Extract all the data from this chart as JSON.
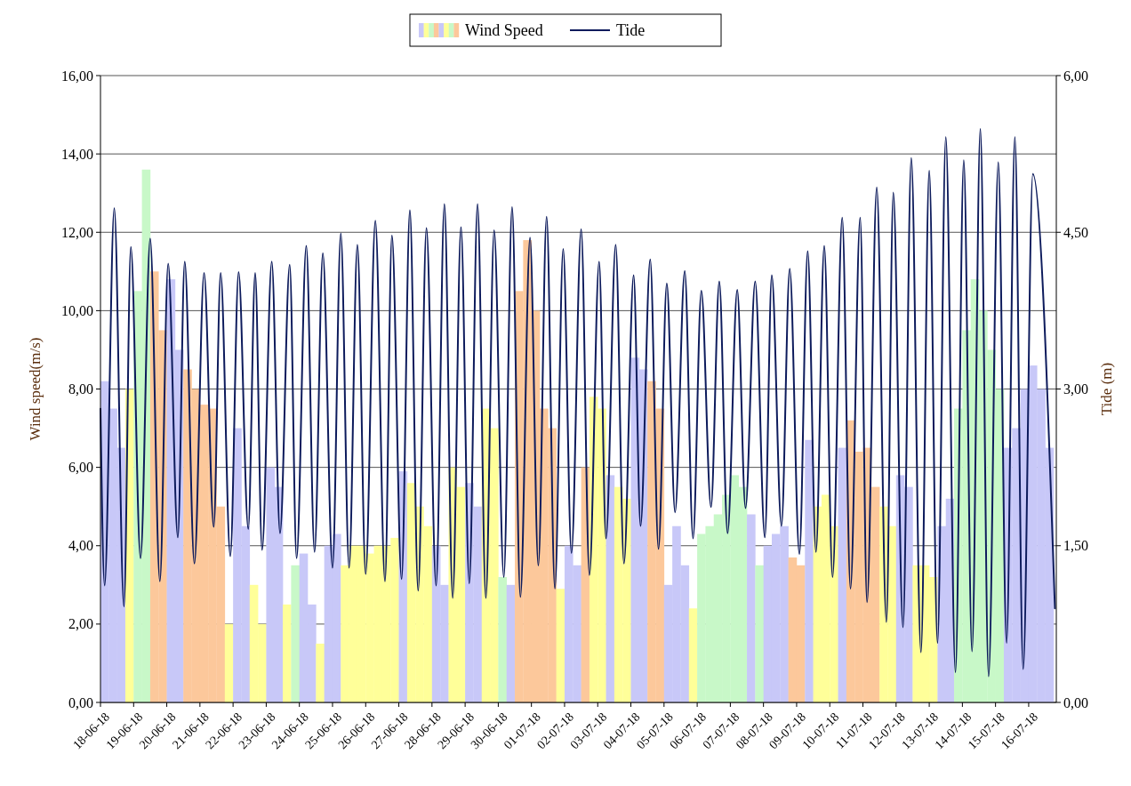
{
  "chart_data": {
    "type": "bar",
    "xlim": [
      "--06-18",
      "--07-16T20:00"
    ],
    "xticks": [
      {
        "value": "--06-18",
        "label": "18-06-18"
      },
      {
        "value": "--06-19",
        "label": "19-06-18"
      },
      {
        "value": "--06-20",
        "label": "20-06-18"
      },
      {
        "value": "--06-21",
        "label": "21-06-18"
      },
      {
        "value": "--06-22",
        "label": "22-06-18"
      },
      {
        "value": "--06-23",
        "label": "23-06-18"
      },
      {
        "value": "--06-24",
        "label": "24-06-18"
      },
      {
        "value": "--06-25",
        "label": "25-06-18"
      },
      {
        "value": "--06-26",
        "label": "26-06-18"
      },
      {
        "value": "--06-27",
        "label": "27-06-18"
      },
      {
        "value": "--06-28",
        "label": "28-06-18"
      },
      {
        "value": "--06-29",
        "label": "29-06-18"
      },
      {
        "value": "--06-30",
        "label": "30-06-18"
      },
      {
        "value": "--07-01",
        "label": "01-07-18"
      },
      {
        "value": "--07-02",
        "label": "02-07-18"
      },
      {
        "value": "--07-03",
        "label": "03-07-18"
      },
      {
        "value": "--07-04",
        "label": "04-07-18"
      },
      {
        "value": "--07-05",
        "label": "05-07-18"
      },
      {
        "value": "--07-06",
        "label": "06-07-18"
      },
      {
        "value": "--07-07",
        "label": "07-07-18"
      },
      {
        "value": "--07-08",
        "label": "08-07-18"
      },
      {
        "value": "--07-09",
        "label": "09-07-18"
      },
      {
        "value": "--07-10",
        "label": "10-07-18"
      },
      {
        "value": "--07-11",
        "label": "11-07-18"
      },
      {
        "value": "--07-12",
        "label": "12-07-18"
      },
      {
        "value": "--07-13",
        "label": "13-07-18"
      },
      {
        "value": "--07-14",
        "label": "14-07-18"
      },
      {
        "value": "--07-15",
        "label": "15-07-18"
      },
      {
        "value": "--07-16",
        "label": "16-07-18"
      }
    ],
    "ylim": [
      0,
      16
    ],
    "yticks": [
      {
        "value": 0,
        "label": "0,00"
      },
      {
        "value": 2,
        "label": "2,00"
      },
      {
        "value": 4,
        "label": "4,00"
      },
      {
        "value": 6,
        "label": "6,00"
      },
      {
        "value": 8,
        "label": "8,00"
      },
      {
        "value": 10,
        "label": "10,00"
      },
      {
        "value": 12,
        "label": "12,00"
      },
      {
        "value": 14,
        "label": "14,00"
      },
      {
        "value": 16,
        "label": "16,00"
      }
    ],
    "y2lim": [
      0,
      6
    ],
    "y2ticks": [
      {
        "value": 0,
        "label": "0,00"
      },
      {
        "value": 1.5,
        "label": "1,50"
      },
      {
        "value": 3,
        "label": "3,00"
      },
      {
        "value": 4.5,
        "label": "4,50"
      },
      {
        "value": 6,
        "label": "6,00"
      }
    ],
    "ylabel": "Wind speed(m/s)",
    "y2label": "Tide (m)",
    "grid": "y",
    "legend": "top",
    "series": [
      {
        "name": "Wind Speed",
        "x": [
          "--06-18T03:00",
          "--06-18T09:00",
          "--06-18T15:00",
          "--06-18T21:00",
          "--06-19T03:00",
          "--06-19T09:00",
          "--06-19T15:00",
          "--06-19T21:00",
          "--06-20T03:00",
          "--06-20T09:00",
          "--06-20T15:00",
          "--06-20T21:00",
          "--06-21T03:00",
          "--06-21T09:00",
          "--06-21T15:00",
          "--06-21T21:00",
          "--06-22T03:00",
          "--06-22T09:00",
          "--06-22T15:00",
          "--06-22T21:00",
          "--06-23T03:00",
          "--06-23T09:00",
          "--06-23T15:00",
          "--06-23T21:00",
          "--06-24T03:00",
          "--06-24T09:00",
          "--06-24T15:00",
          "--06-24T21:00",
          "--06-25T03:00",
          "--06-25T09:00",
          "--06-25T15:00",
          "--06-25T21:00",
          "--06-26T03:00",
          "--06-26T09:00",
          "--06-26T15:00",
          "--06-26T21:00",
          "--06-27T03:00",
          "--06-27T09:00",
          "--06-27T15:00",
          "--06-27T21:00",
          "--06-28T03:00",
          "--06-28T09:00",
          "--06-28T15:00",
          "--06-28T21:00",
          "--06-29T03:00",
          "--06-29T09:00",
          "--06-29T15:00",
          "--06-29T21:00",
          "--06-30T03:00",
          "--06-30T09:00",
          "--06-30T15:00",
          "--06-30T21:00",
          "--07-01T03:00",
          "--07-01T09:00",
          "--07-01T15:00",
          "--07-01T21:00",
          "--07-02T03:00",
          "--07-02T09:00",
          "--07-02T15:00",
          "--07-02T21:00",
          "--07-03T03:00",
          "--07-03T09:00",
          "--07-03T15:00",
          "--07-03T21:00",
          "--07-04T03:00",
          "--07-04T09:00",
          "--07-04T15:00",
          "--07-04T21:00",
          "--07-05T03:00",
          "--07-05T09:00",
          "--07-05T15:00",
          "--07-05T21:00",
          "--07-06T03:00",
          "--07-06T09:00",
          "--07-06T15:00",
          "--07-06T21:00",
          "--07-07T03:00",
          "--07-07T09:00",
          "--07-07T15:00",
          "--07-07T21:00",
          "--07-08T03:00",
          "--07-08T09:00",
          "--07-08T15:00",
          "--07-08T21:00",
          "--07-09T03:00",
          "--07-09T09:00",
          "--07-09T15:00",
          "--07-09T21:00",
          "--07-10T03:00",
          "--07-10T09:00",
          "--07-10T15:00",
          "--07-10T21:00",
          "--07-11T03:00",
          "--07-11T09:00",
          "--07-11T15:00",
          "--07-11T21:00",
          "--07-12T03:00",
          "--07-12T09:00",
          "--07-12T15:00",
          "--07-12T21:00",
          "--07-13T03:00",
          "--07-13T09:00",
          "--07-13T15:00",
          "--07-13T21:00",
          "--07-14T03:00",
          "--07-14T09:00",
          "--07-14T15:00",
          "--07-14T21:00",
          "--07-15T03:00",
          "--07-15T09:00",
          "--07-15T15:00",
          "--07-15T21:00",
          "--07-16T03:00",
          "--07-16T09:00",
          "--07-16T15:00"
        ],
        "values": [
          8.2,
          7.5,
          6.5,
          8.0,
          10.5,
          13.6,
          11.0,
          9.5,
          10.8,
          9.0,
          8.5,
          8.0,
          7.6,
          7.5,
          5.0,
          2.0,
          7.0,
          4.5,
          3.0,
          2.0,
          6.0,
          5.5,
          2.5,
          3.5,
          3.8,
          2.5,
          1.5,
          4.0,
          4.3,
          3.5,
          4.0,
          4.0,
          3.8,
          4.0,
          4.0,
          4.2,
          5.9,
          5.6,
          5.0,
          4.5,
          4.0,
          3.0,
          6.0,
          5.5,
          5.6,
          5.0,
          7.5,
          7.0,
          3.2,
          3.0,
          10.5,
          11.8,
          10.0,
          7.5,
          7.0,
          2.9,
          4.0,
          3.5,
          6.0,
          7.8,
          7.5,
          5.8,
          5.5,
          5.2,
          8.8,
          8.5,
          8.2,
          7.5,
          3.0,
          4.5,
          3.5,
          2.4,
          4.3,
          4.5,
          4.8,
          5.3,
          5.8,
          5.5,
          4.8,
          3.5,
          4.0,
          4.3,
          4.5,
          3.7,
          3.5,
          6.7,
          5.0,
          5.3,
          4.5,
          6.5,
          7.2,
          6.4,
          6.5,
          5.5,
          5.0,
          4.5,
          5.8,
          5.5,
          3.5,
          3.5,
          3.2,
          4.5,
          5.2,
          7.5,
          9.5,
          10.8,
          10.0,
          9.0,
          8.0,
          6.5,
          7.0,
          8.0,
          8.6,
          8.0,
          6.5
        ],
        "colors": [
          "#c8c8f8",
          "#c8c8f8",
          "#c8c8f8",
          "#ffff99",
          "#c8f8c8",
          "#c8f8c8",
          "#fcc89b",
          "#fcc89b",
          "#c8c8f8",
          "#c8c8f8",
          "#fcc89b",
          "#fcc89b",
          "#fcc89b",
          "#fcc89b",
          "#fcc89b",
          "#ffff99",
          "#c8c8f8",
          "#c8c8f8",
          "#ffff99",
          "#ffff99",
          "#c8c8f8",
          "#c8c8f8",
          "#ffff99",
          "#c8f8c8",
          "#c8c8f8",
          "#c8c8f8",
          "#ffff99",
          "#c8c8f8",
          "#c8c8f8",
          "#ffff99",
          "#ffff99",
          "#ffff99",
          "#ffff99",
          "#ffff99",
          "#ffff99",
          "#ffff99",
          "#c8c8f8",
          "#ffff99",
          "#ffff99",
          "#ffff99",
          "#c8c8f8",
          "#c8c8f8",
          "#ffff99",
          "#ffff99",
          "#c8c8f8",
          "#c8c8f8",
          "#ffff99",
          "#ffff99",
          "#c8f8c8",
          "#c8c8f8",
          "#fcc89b",
          "#fcc89b",
          "#fcc89b",
          "#fcc89b",
          "#fcc89b",
          "#ffff99",
          "#c8c8f8",
          "#c8c8f8",
          "#fcc89b",
          "#ffff99",
          "#ffff99",
          "#c8c8f8",
          "#ffff99",
          "#ffff99",
          "#c8c8f8",
          "#c8c8f8",
          "#fcc89b",
          "#fcc89b",
          "#c8c8f8",
          "#c8c8f8",
          "#c8c8f8",
          "#ffff99",
          "#c8f8c8",
          "#c8f8c8",
          "#c8f8c8",
          "#c8f8c8",
          "#c8f8c8",
          "#c8f8c8",
          "#c8c8f8",
          "#c8f8c8",
          "#c8c8f8",
          "#c8c8f8",
          "#c8c8f8",
          "#fcc89b",
          "#fcc89b",
          "#c8c8f8",
          "#ffff99",
          "#ffff99",
          "#ffff99",
          "#c8c8f8",
          "#fcc89b",
          "#fcc89b",
          "#fcc89b",
          "#fcc89b",
          "#ffff99",
          "#ffff99",
          "#c8c8f8",
          "#c8c8f8",
          "#ffff99",
          "#ffff99",
          "#ffff99",
          "#c8c8f8",
          "#c8c8f8",
          "#c8f8c8",
          "#c8f8c8",
          "#c8f8c8",
          "#c8f8c8",
          "#c8f8c8",
          "#c8f8c8",
          "#c8c8f8",
          "#c8c8f8",
          "#c8c8f8",
          "#c8c8f8",
          "#c8c8f8",
          "#c8c8f8"
        ]
      },
      {
        "name": "Tide",
        "type": "line",
        "axis": "y2",
        "color": "#0d1b5c",
        "x": [
          "--06-18T00:00",
          "--06-18T03:00",
          "--06-18T10:00",
          "--06-18T17:00",
          "--06-18T22:00",
          "--06-19T05:00",
          "--06-19T12:00",
          "--06-19T19:00",
          "--06-20T01:00",
          "--06-20T08:00",
          "--06-20T13:00",
          "--06-20T20:00",
          "--06-21T03:00",
          "--06-21T10:00",
          "--06-21T15:00",
          "--06-21T22:00",
          "--06-22T04:00",
          "--06-22T11:00",
          "--06-22T16:00",
          "--06-22T21:00",
          "--06-23T04:00",
          "--06-23T10:00",
          "--06-23T17:00",
          "--06-23T22:00",
          "--06-24T05:00",
          "--06-24T11:00",
          "--06-24T17:00",
          "--06-25T00:00",
          "--06-25T06:00",
          "--06-25T12:00",
          "--06-25T18:00",
          "--06-26T00:00",
          "--06-26T07:00",
          "--06-26T14:00",
          "--06-26T19:00",
          "--06-27T02:00",
          "--06-27T08:00",
          "--06-27T14:00",
          "--06-27T20:00",
          "--06-28T03:00",
          "--06-28T09:00",
          "--06-28T15:00",
          "--06-28T21:00",
          "--06-29T03:00",
          "--06-29T09:00",
          "--06-29T15:00",
          "--06-29T21:00",
          "--06-30T04:00",
          "--06-30T10:00",
          "--06-30T16:00",
          "--06-30T23:00",
          "--07-01T05:00",
          "--07-01T11:00",
          "--07-01T17:00",
          "--07-01T23:00",
          "--07-02T05:00",
          "--07-02T12:00",
          "--07-02T18:00",
          "--07-03T01:00",
          "--07-03T06:00",
          "--07-03T13:00",
          "--07-03T19:00",
          "--07-04T02:00",
          "--07-04T07:00",
          "--07-04T14:00",
          "--07-04T20:00",
          "--07-05T02:00",
          "--07-05T08:00",
          "--07-05T15:00",
          "--07-05T21:00",
          "--07-06T03:00",
          "--07-06T10:00",
          "--07-06T16:00",
          "--07-06T22:00",
          "--07-07T05:00",
          "--07-07T11:00",
          "--07-07T18:00",
          "--07-08T01:00",
          "--07-08T06:00",
          "--07-08T13:00",
          "--07-08T19:00",
          "--07-09T02:00",
          "--07-09T08:00",
          "--07-09T14:00",
          "--07-09T20:00",
          "--07-10T02:00",
          "--07-10T09:00",
          "--07-10T15:00",
          "--07-10T22:00",
          "--07-11T03:00",
          "--07-11T10:00",
          "--07-11T17:00",
          "--07-11T22:00",
          "--07-12T05:00",
          "--07-12T11:00",
          "--07-12T18:00",
          "--07-13T00:00",
          "--07-13T06:00",
          "--07-13T12:00",
          "--07-13T19:00",
          "--07-14T01:00",
          "--07-14T07:00",
          "--07-14T13:00",
          "--07-14T19:00",
          "--07-15T02:00",
          "--07-15T08:00",
          "--07-15T14:00",
          "--07-15T20:00",
          "--07-16T03:00",
          "--07-16T19:00"
        ],
        "values": [
          2.81,
          1.12,
          4.73,
          0.92,
          4.36,
          1.38,
          4.44,
          1.16,
          4.2,
          1.58,
          4.22,
          1.33,
          4.11,
          1.68,
          4.11,
          1.4,
          4.12,
          1.66,
          4.11,
          1.46,
          4.22,
          1.62,
          4.19,
          1.38,
          4.37,
          1.44,
          4.3,
          1.29,
          4.49,
          1.29,
          4.38,
          1.23,
          4.61,
          1.16,
          4.47,
          1.18,
          4.71,
          1.07,
          4.54,
          1.12,
          4.77,
          1.0,
          4.55,
          1.14,
          4.77,
          1.0,
          4.52,
          1.2,
          4.74,
          1.01,
          4.45,
          1.31,
          4.65,
          1.09,
          4.34,
          1.43,
          4.53,
          1.22,
          4.22,
          1.57,
          4.38,
          1.33,
          4.09,
          1.69,
          4.24,
          1.47,
          4.01,
          1.82,
          4.13,
          1.57,
          3.94,
          1.87,
          4.03,
          1.62,
          3.95,
          1.86,
          4.03,
          1.58,
          4.09,
          1.69,
          4.15,
          1.42,
          4.32,
          1.44,
          4.37,
          1.2,
          4.64,
          1.09,
          4.64,
          0.96,
          4.93,
          0.77,
          4.88,
          0.72,
          5.21,
          0.48,
          5.09,
          0.57,
          5.41,
          0.29,
          5.19,
          0.49,
          5.49,
          0.25,
          5.17,
          0.57,
          5.41,
          0.32,
          5.06,
          0.9
        ]
      }
    ]
  }
}
